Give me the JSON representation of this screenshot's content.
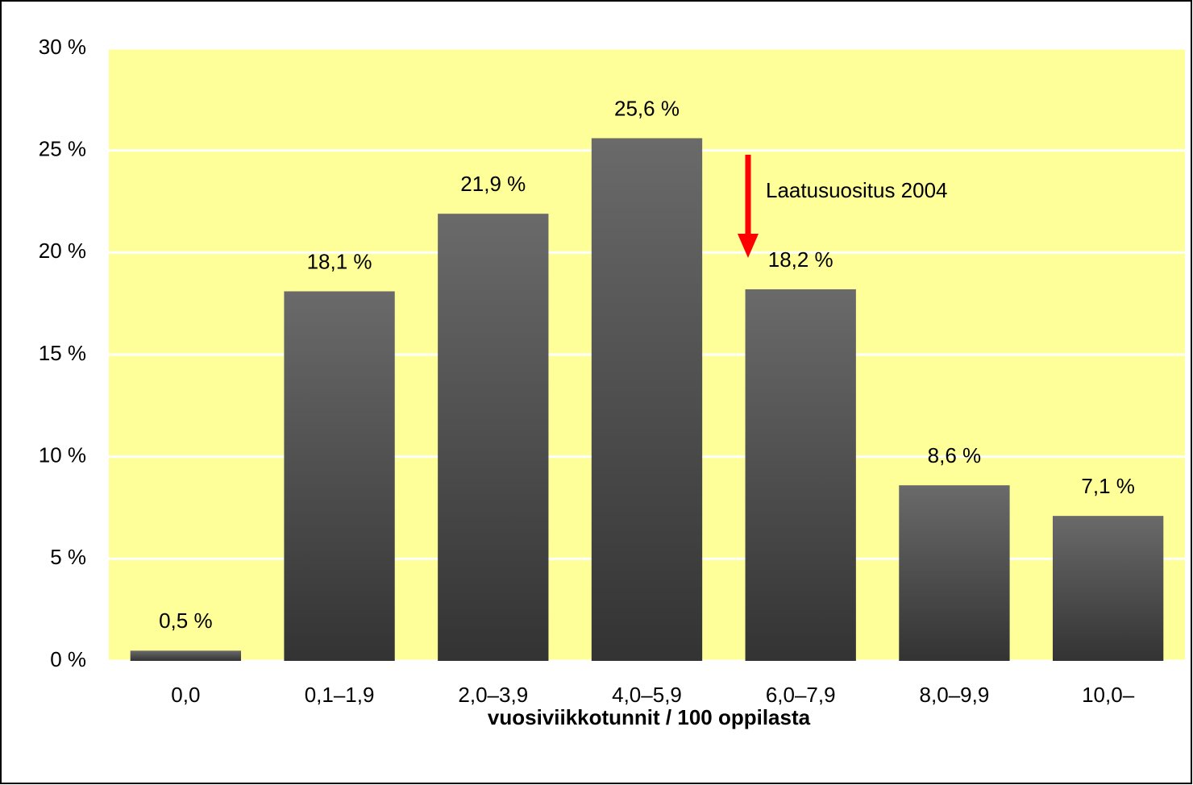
{
  "chart_data": {
    "type": "bar",
    "x_label": "vuosiviikkotunnit / 100 oppilasta",
    "annotation": "Laatusuositus 2004",
    "categories": [
      "0,0",
      "0,1–1,9",
      "2,0–3,9",
      "4,0–5,9",
      "6,0–7,9",
      "8,0–9,9",
      "10,0–"
    ],
    "values": [
      0.5,
      18.1,
      21.9,
      25.6,
      18.2,
      8.6,
      7.1
    ],
    "value_labels": [
      "0,5 %",
      "18,1 %",
      "21,9 %",
      "25,6 %",
      "18,2 %",
      "8,6 %",
      "7,1 %"
    ],
    "color": "#5a5a5a",
    "plot_background": "#ffff99",
    "ylim": [
      0,
      30
    ],
    "yticks": [
      {
        "value": 0,
        "label": "0 %"
      },
      {
        "value": 5,
        "label": "5 %"
      },
      {
        "value": 10,
        "label": "10 %"
      },
      {
        "value": 15,
        "label": "15 %"
      },
      {
        "value": 20,
        "label": "20 %"
      },
      {
        "value": 25,
        "label": "25 %"
      },
      {
        "value": 30,
        "label": "30 %"
      }
    ],
    "grid": true
  }
}
